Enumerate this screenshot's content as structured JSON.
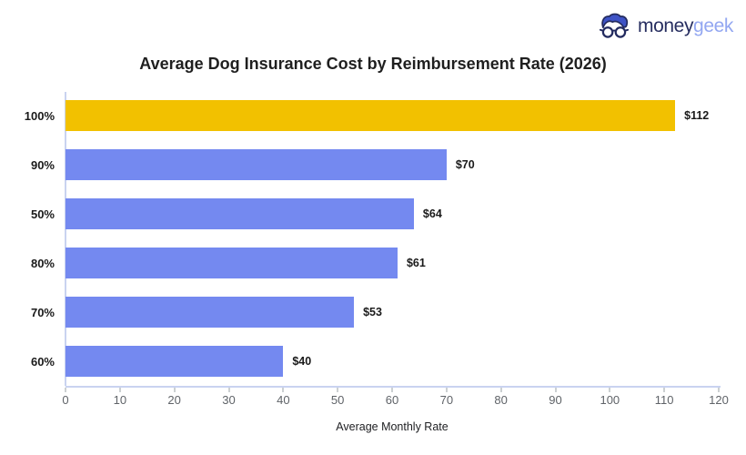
{
  "logo": {
    "brand_primary": "money",
    "brand_secondary": "geek",
    "icon": "geek-face-with-glasses-icon",
    "colors": {
      "primary_text": "#272e60",
      "secondary_text": "#93a7f1",
      "hair": "#3e53c6",
      "outline": "#232b5f"
    }
  },
  "chart_data": {
    "type": "bar",
    "orientation": "horizontal",
    "title": "Average Dog Insurance Cost by Reimbursement Rate (2026)",
    "categories": [
      "100%",
      "90%",
      "50%",
      "80%",
      "70%",
      "60%"
    ],
    "values": [
      112,
      70,
      64,
      61,
      53,
      40
    ],
    "value_labels": [
      "$112",
      "$70",
      "$64",
      "$61",
      "$53",
      "$40"
    ],
    "xlabel": "Average Monthly Rate",
    "ylabel": "",
    "xlim": [
      0,
      120
    ],
    "x_ticks": [
      0,
      10,
      20,
      30,
      40,
      50,
      60,
      70,
      80,
      90,
      100,
      110,
      120
    ],
    "grid": false,
    "legend": "none",
    "highlight_index": 0,
    "colors": {
      "bar_default": "#7489f0",
      "bar_highlight": "#f2c100",
      "axis_line": "#c9d3f0",
      "tick_mark": "#9aa0a6",
      "tick_label": "#5f6368",
      "title": "#1f1f1f"
    }
  }
}
